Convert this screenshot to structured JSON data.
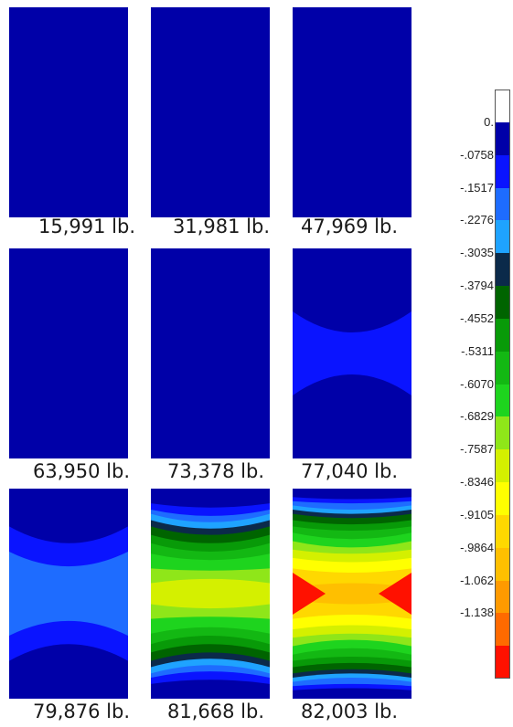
{
  "panels": [
    {
      "load": "15,991 lb.",
      "bands": []
    },
    {
      "load": "31,981 lb.",
      "bands": []
    },
    {
      "load": "47,969 lb.",
      "bands": []
    },
    {
      "load": "63,950 lb.",
      "bands": []
    },
    {
      "load": "73,378 lb.",
      "bands": []
    },
    {
      "load": "77,040 lb.",
      "bands": [
        {
          "level": 1,
          "out": 0.3,
          "mid": 0.4
        }
      ]
    },
    {
      "load": "79,876 lb.",
      "bands": [
        {
          "level": 1,
          "out": 0.18,
          "mid": 0.26
        },
        {
          "level": 2,
          "out": 0.3,
          "mid": 0.37
        }
      ]
    },
    {
      "load": "81,668 lb.",
      "bands": [
        {
          "level": 1,
          "out": 0.07,
          "mid": 0.09
        },
        {
          "level": 2,
          "out": 0.1,
          "mid": 0.13
        },
        {
          "level": 3,
          "out": 0.12,
          "mid": 0.16
        },
        {
          "level": 4,
          "out": 0.15,
          "mid": 0.19
        },
        {
          "level": 5,
          "out": 0.18,
          "mid": 0.22
        },
        {
          "level": 6,
          "out": 0.22,
          "mid": 0.26
        },
        {
          "level": 7,
          "out": 0.26,
          "mid": 0.3
        },
        {
          "level": 8,
          "out": 0.31,
          "mid": 0.34
        },
        {
          "level": 9,
          "out": 0.38,
          "mid": 0.39
        },
        {
          "level": 10,
          "out": 0.45,
          "mid": 0.43
        }
      ]
    },
    {
      "load": "82,003 lb.",
      "bands": [
        {
          "level": 1,
          "out": 0.04,
          "mid": 0.05
        },
        {
          "level": 2,
          "out": 0.06,
          "mid": 0.07
        },
        {
          "level": 3,
          "out": 0.08,
          "mid": 0.1
        },
        {
          "level": 4,
          "out": 0.1,
          "mid": 0.12
        },
        {
          "level": 5,
          "out": 0.12,
          "mid": 0.14
        },
        {
          "level": 6,
          "out": 0.15,
          "mid": 0.17
        },
        {
          "level": 7,
          "out": 0.18,
          "mid": 0.2
        },
        {
          "level": 8,
          "out": 0.21,
          "mid": 0.24
        },
        {
          "level": 9,
          "out": 0.25,
          "mid": 0.28
        },
        {
          "level": 10,
          "out": 0.29,
          "mid": 0.31
        },
        {
          "level": 11,
          "out": 0.33,
          "mid": 0.35
        },
        {
          "level": 12,
          "out": 0.38,
          "mid": 0.4
        },
        {
          "level": 13,
          "out": 0.47,
          "mid": 0.45
        }
      ]
    }
  ],
  "legend": {
    "colors": [
      "#ffffff",
      "#0000a8",
      "#0a14ff",
      "#1e6cff",
      "#1fa3ff",
      "#0b2a4a",
      "#006400",
      "#089a08",
      "#13b813",
      "#1ed41e",
      "#8fe619",
      "#d4f000",
      "#ffff00",
      "#ffd800",
      "#ffbf00",
      "#ff9a00",
      "#ff6a00",
      "#ff1100"
    ],
    "labels": [
      "0.",
      "-.0758",
      "-.1517",
      "-.2276",
      "-.3035",
      "-.3794",
      "-.4552",
      "-.5311",
      "-.6070",
      "-.6829",
      "-.7587",
      "-.8346",
      "-.9105",
      "-.9864",
      "-1.062",
      "-1.138"
    ]
  }
}
